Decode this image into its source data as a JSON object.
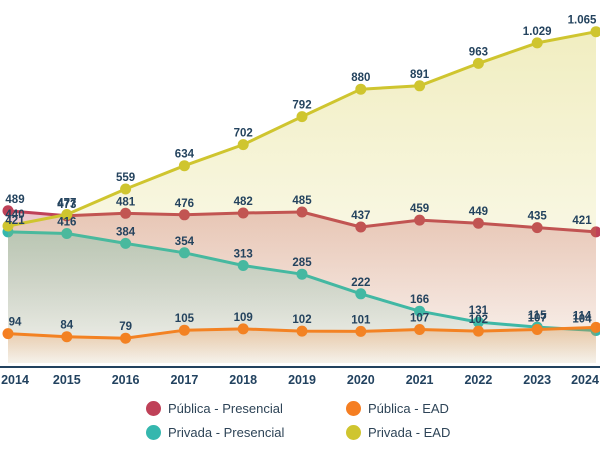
{
  "chart_data": {
    "type": "line",
    "title": "",
    "xlabel": "",
    "ylabel": "",
    "x": [
      2014,
      2015,
      2016,
      2017,
      2018,
      2019,
      2020,
      2021,
      2022,
      2023,
      2024
    ],
    "series": [
      {
        "name": "Pública - Presencial",
        "color": "#bf4158",
        "values": [
          489,
          473,
          481,
          476,
          482,
          485,
          437,
          459,
          449,
          435,
          421
        ]
      },
      {
        "name": "Privada - Presencial",
        "color": "#35b7ae",
        "values": [
          421,
          416,
          384,
          354,
          313,
          285,
          222,
          166,
          131,
          115,
          104
        ]
      },
      {
        "name": "Pública - EAD",
        "color": "#f57e22",
        "values": [
          94,
          84,
          79,
          105,
          109,
          102,
          101,
          107,
          102,
          107,
          114
        ]
      },
      {
        "name": "Privada - EAD",
        "color": "#cfc52f",
        "values": [
          440,
          477,
          559,
          634,
          702,
          792,
          880,
          891,
          963,
          1029,
          1065
        ]
      }
    ],
    "ylim": [
      0,
      1170
    ],
    "grid": false,
    "area_fill": true,
    "markers": true,
    "data_labels": true,
    "number_format": "thousands-dot (1.029, 1.065)",
    "legend_position": "bottom",
    "axis_color": "#22425f",
    "label_color": "#24435e"
  }
}
